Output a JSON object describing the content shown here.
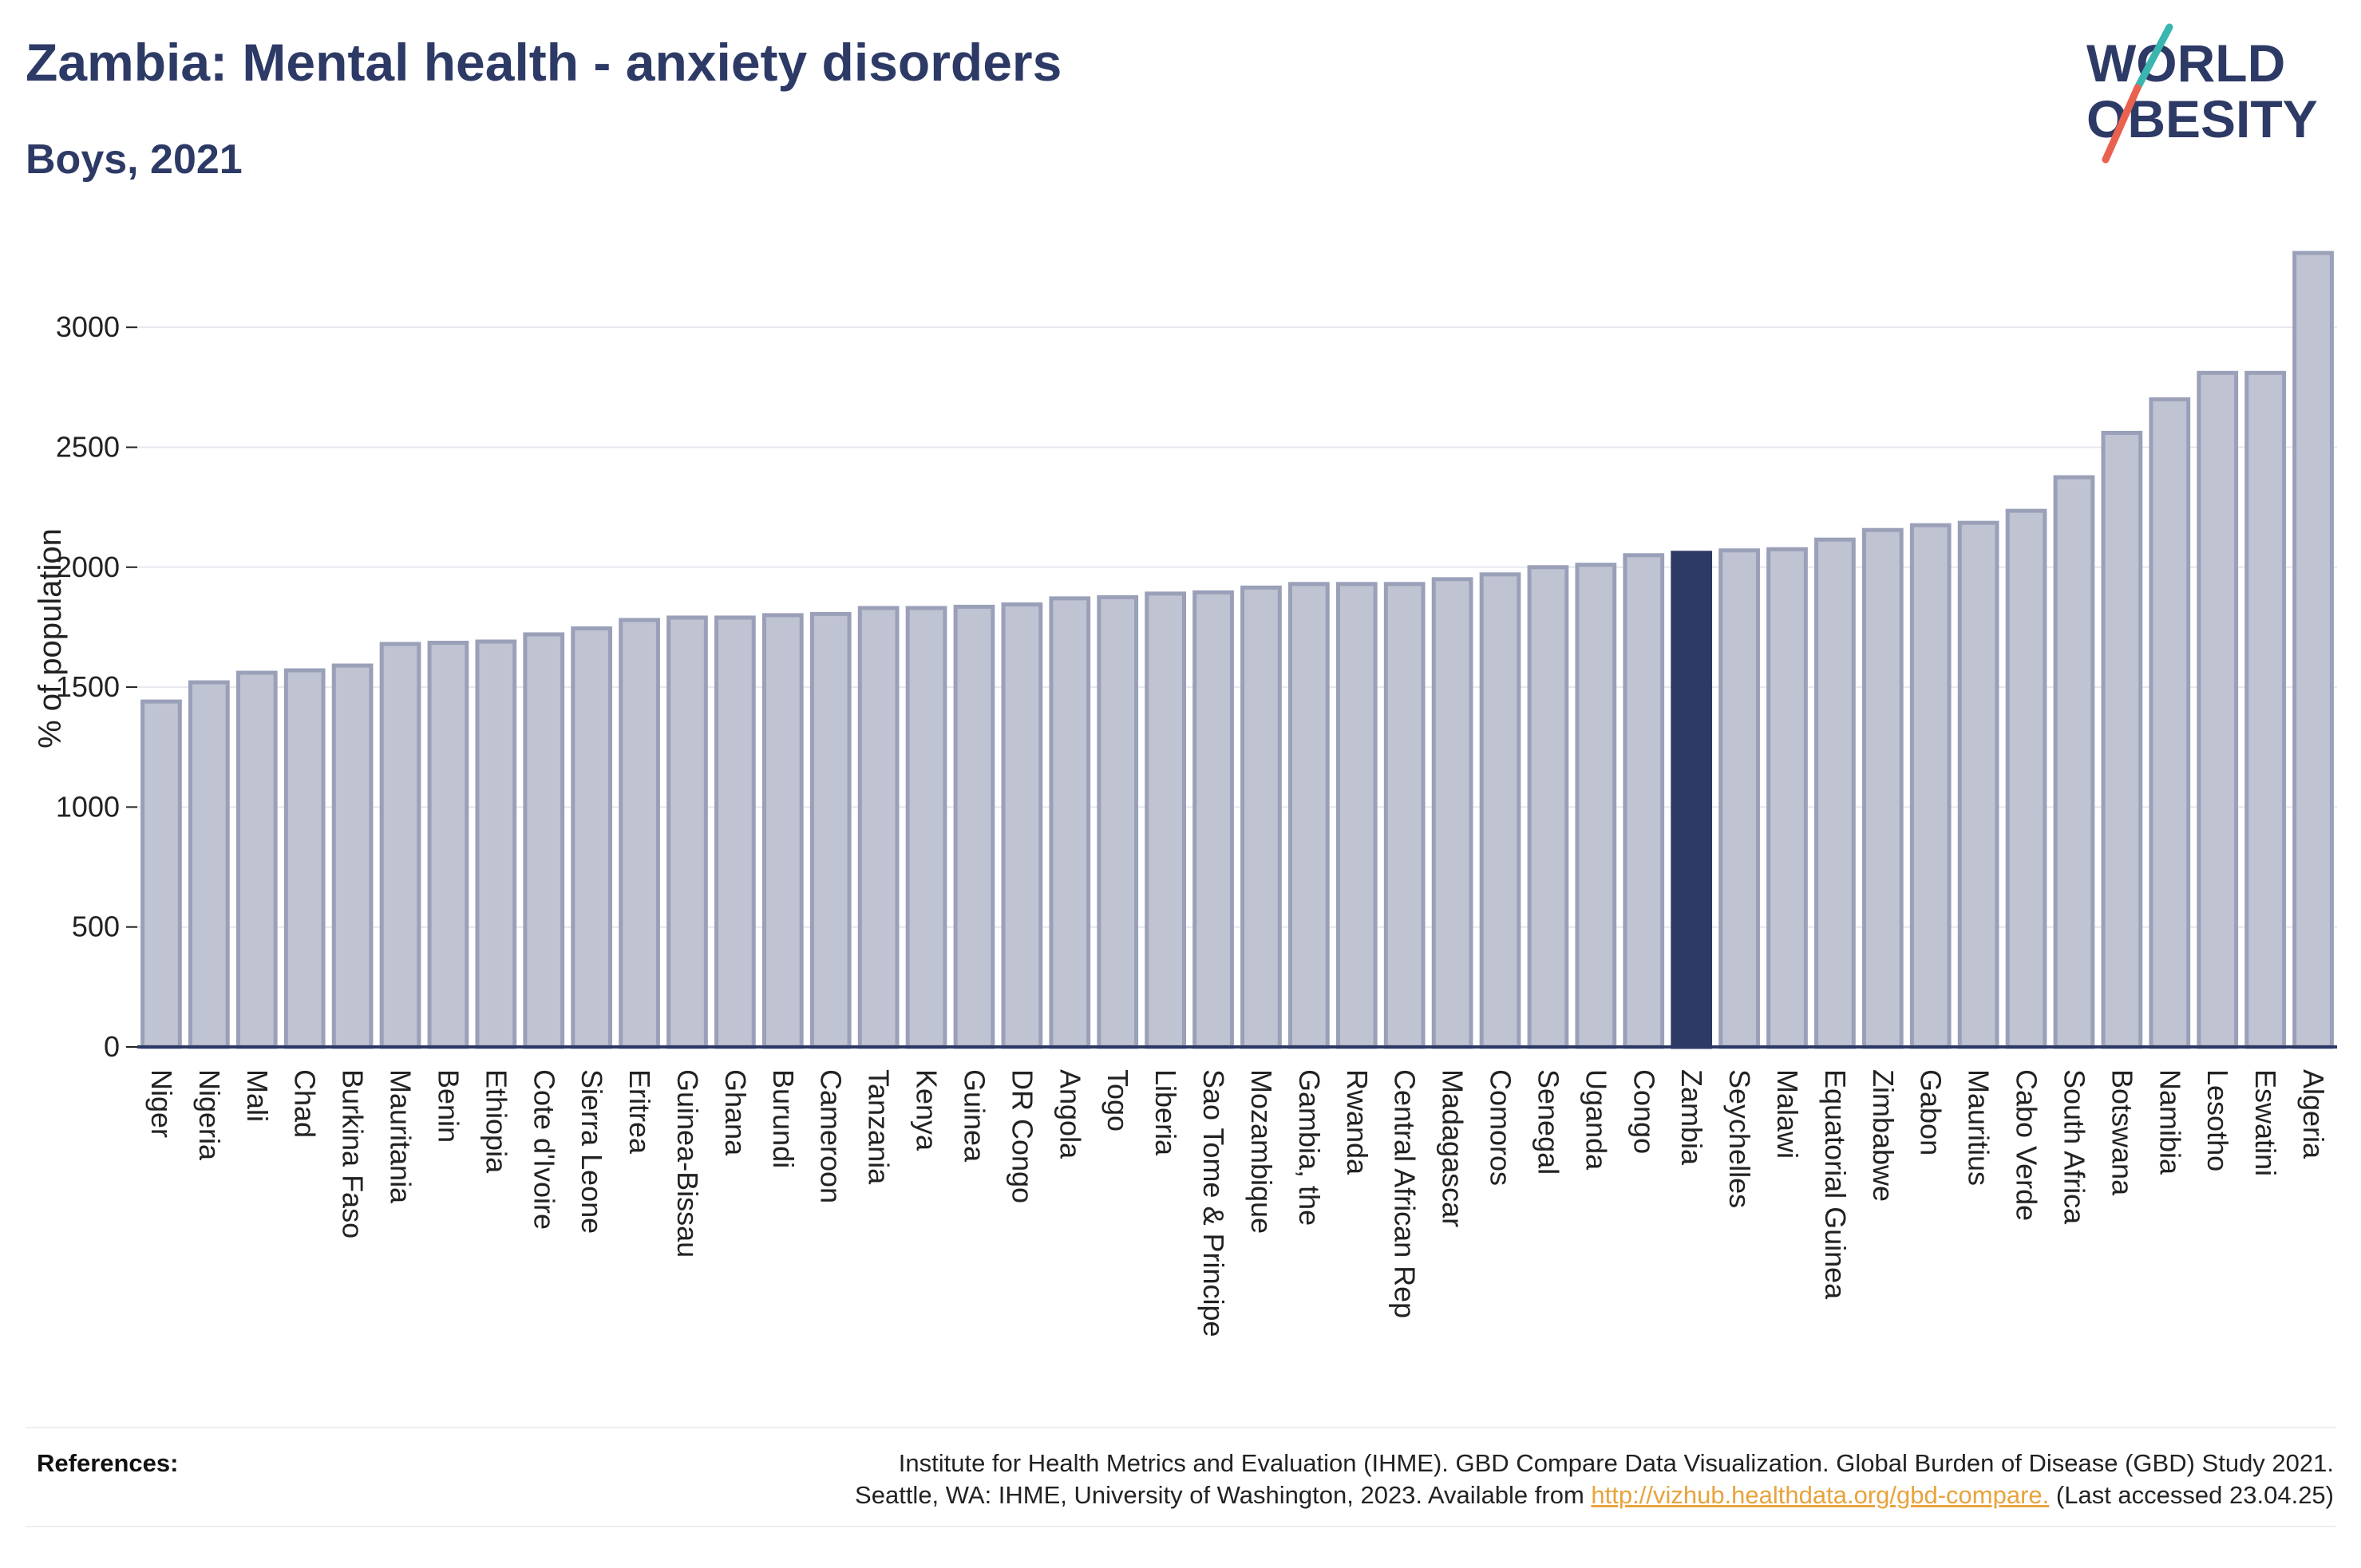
{
  "title": "Zambia: Mental health - anxiety disorders",
  "subtitle": "Boys, 2021",
  "logo": {
    "line1": "WORLD",
    "line2": "OBESITY",
    "slash_colors": [
      "#3ab5b0",
      "#e8624f"
    ]
  },
  "colors": {
    "bar": "#bfc3d2",
    "bar_border": "#9aa0b8",
    "highlight": "#2d3a66",
    "grid": "#e6e8ee",
    "axis": "#2d3a66"
  },
  "chart_data": {
    "type": "bar",
    "ylabel": "% of population",
    "ylim": [
      0,
      3300
    ],
    "yticks": [
      0,
      500,
      1000,
      1500,
      2000,
      2500,
      3000
    ],
    "grid": true,
    "highlight": "Zambia",
    "categories": [
      "Niger",
      "Nigeria",
      "Mali",
      "Chad",
      "Burkina Faso",
      "Mauritania",
      "Benin",
      "Ethiopia",
      "Cote d'Ivoire",
      "Sierra Leone",
      "Eritrea",
      "Guinea-Bissau",
      "Ghana",
      "Burundi",
      "Cameroon",
      "Tanzania",
      "Kenya",
      "Guinea",
      "DR Congo",
      "Angola",
      "Togo",
      "Liberia",
      "Sao Tome & Principe",
      "Mozambique",
      "Gambia, the",
      "Rwanda",
      "Central African Rep",
      "Madagascar",
      "Comoros",
      "Senegal",
      "Uganda",
      "Congo",
      "Zambia",
      "Seychelles",
      "Malawi",
      "Equatorial Guinea",
      "Zimbabwe",
      "Gabon",
      "Mauritius",
      "Cabo Verde",
      "South Africa",
      "Botswana",
      "Namibia",
      "Lesotho",
      "Eswatini",
      "Algeria"
    ],
    "values": [
      1440,
      1520,
      1560,
      1570,
      1590,
      1680,
      1685,
      1690,
      1720,
      1745,
      1780,
      1790,
      1790,
      1800,
      1805,
      1830,
      1830,
      1835,
      1845,
      1870,
      1875,
      1890,
      1895,
      1915,
      1930,
      1930,
      1930,
      1950,
      1970,
      2000,
      2010,
      2050,
      2060,
      2070,
      2075,
      2115,
      2155,
      2175,
      2185,
      2235,
      2375,
      2560,
      2700,
      2810,
      2810,
      3310
    ]
  },
  "references": {
    "heading": "References:",
    "line1": "Institute for Health Metrics and Evaluation (IHME). GBD Compare Data Visualization. Global Burden of Disease (GBD) Study 2021.",
    "line2_pre": "Seattle, WA: IHME, University of Washington, 2023. Available from ",
    "link": "http://vizhub.healthdata.org/gbd-compare.",
    "line2_post": " (Last accessed 23.04.25)"
  }
}
